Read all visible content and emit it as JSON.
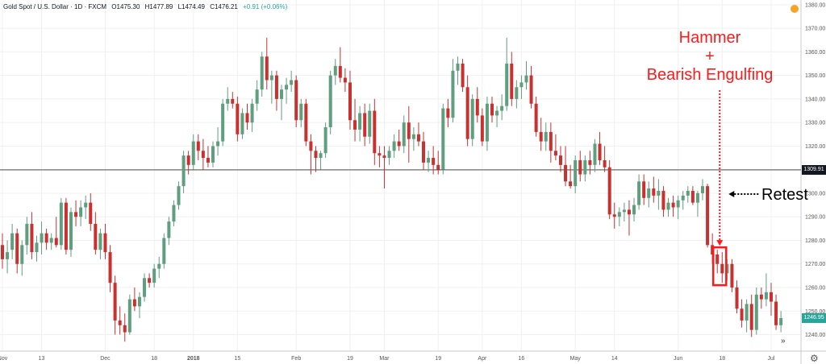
{
  "header": {
    "symbol": "Gold Spot / U.S. Dollar · 1D · FXCM",
    "open": "O1475.30",
    "high": "H1477.89",
    "low": "L1474.49",
    "close": "C1476.21",
    "change": "+0.91 (+0.06%)"
  },
  "annotations": {
    "hammer_line1": "Hammer",
    "hammer_line2": "+",
    "hammer_line3": "Bearish Engulfing",
    "retest": "Retest"
  },
  "price_labels": {
    "level": "1309.91",
    "last": "1246.95"
  },
  "colors": {
    "up": "#5f9e7e",
    "down": "#c8312f",
    "annotation": "#ff1a1a",
    "grid": "#eef0f3",
    "level_line": "#333333",
    "last_price": "#26a69a"
  },
  "icons": {
    "alert": "alert-icon",
    "settings": "gear-icon",
    "scroll": "scroll-right-icon"
  },
  "chart_data": {
    "type": "candlestick",
    "title": "",
    "xlabel": "",
    "ylabel": "",
    "ylim": [
      1233,
      1382
    ],
    "grid": true,
    "y_ticks": [
      1240,
      1250,
      1260,
      1270,
      1280,
      1290,
      1300,
      1310,
      1320,
      1330,
      1340,
      1350,
      1360,
      1370,
      1380
    ],
    "x_tick_labels": [
      {
        "label": "Nov",
        "index": 0
      },
      {
        "label": "13",
        "index": 8
      },
      {
        "label": "Dec",
        "index": 21
      },
      {
        "label": "18",
        "index": 31
      },
      {
        "label": "2018",
        "index": 39
      },
      {
        "label": "15",
        "index": 48
      },
      {
        "label": "Feb",
        "index": 60
      },
      {
        "label": "19",
        "index": 71
      },
      {
        "label": "Mar",
        "index": 78
      },
      {
        "label": "19",
        "index": 89
      },
      {
        "label": "Apr",
        "index": 98
      },
      {
        "label": "16",
        "index": 106
      },
      {
        "label": "May",
        "index": 117
      },
      {
        "label": "14",
        "index": 125
      },
      {
        "label": "Jun",
        "index": 138
      },
      {
        "label": "18",
        "index": 147
      },
      {
        "label": "Jul",
        "index": 157
      }
    ],
    "horizontal_line": 1309.91,
    "last_price": 1246.95,
    "highlight": {
      "start_index": 146,
      "end_index": 147
    },
    "candles": [
      {
        "o": 1278,
        "h": 1283,
        "l": 1268,
        "c": 1272
      },
      {
        "o": 1272,
        "h": 1280,
        "l": 1266,
        "c": 1275
      },
      {
        "o": 1276,
        "h": 1287,
        "l": 1272,
        "c": 1283
      },
      {
        "o": 1283,
        "h": 1285,
        "l": 1266,
        "c": 1270
      },
      {
        "o": 1270,
        "h": 1280,
        "l": 1265,
        "c": 1278
      },
      {
        "o": 1278,
        "h": 1290,
        "l": 1274,
        "c": 1287
      },
      {
        "o": 1287,
        "h": 1292,
        "l": 1272,
        "c": 1275
      },
      {
        "o": 1275,
        "h": 1282,
        "l": 1271,
        "c": 1279
      },
      {
        "o": 1279,
        "h": 1288,
        "l": 1274,
        "c": 1283
      },
      {
        "o": 1283,
        "h": 1285,
        "l": 1276,
        "c": 1279
      },
      {
        "o": 1279,
        "h": 1283,
        "l": 1276,
        "c": 1281
      },
      {
        "o": 1281,
        "h": 1290,
        "l": 1277,
        "c": 1278
      },
      {
        "o": 1278,
        "h": 1298,
        "l": 1276,
        "c": 1296
      },
      {
        "o": 1296,
        "h": 1298,
        "l": 1274,
        "c": 1276
      },
      {
        "o": 1276,
        "h": 1294,
        "l": 1273,
        "c": 1292
      },
      {
        "o": 1292,
        "h": 1297,
        "l": 1286,
        "c": 1290
      },
      {
        "o": 1290,
        "h": 1297,
        "l": 1286,
        "c": 1294
      },
      {
        "o": 1294,
        "h": 1299,
        "l": 1289,
        "c": 1296
      },
      {
        "o": 1296,
        "h": 1300,
        "l": 1284,
        "c": 1287
      },
      {
        "o": 1287,
        "h": 1292,
        "l": 1274,
        "c": 1276
      },
      {
        "o": 1276,
        "h": 1285,
        "l": 1272,
        "c": 1283
      },
      {
        "o": 1283,
        "h": 1287,
        "l": 1272,
        "c": 1275
      },
      {
        "o": 1275,
        "h": 1278,
        "l": 1258,
        "c": 1262
      },
      {
        "o": 1262,
        "h": 1265,
        "l": 1240,
        "c": 1246
      },
      {
        "o": 1246,
        "h": 1252,
        "l": 1240,
        "c": 1244
      },
      {
        "o": 1244,
        "h": 1249,
        "l": 1237,
        "c": 1241
      },
      {
        "o": 1241,
        "h": 1257,
        "l": 1240,
        "c": 1255
      },
      {
        "o": 1255,
        "h": 1260,
        "l": 1250,
        "c": 1252
      },
      {
        "o": 1252,
        "h": 1258,
        "l": 1247,
        "c": 1256
      },
      {
        "o": 1256,
        "h": 1266,
        "l": 1254,
        "c": 1264
      },
      {
        "o": 1264,
        "h": 1266,
        "l": 1260,
        "c": 1262
      },
      {
        "o": 1262,
        "h": 1270,
        "l": 1260,
        "c": 1268
      },
      {
        "o": 1268,
        "h": 1273,
        "l": 1264,
        "c": 1270
      },
      {
        "o": 1270,
        "h": 1283,
        "l": 1268,
        "c": 1281
      },
      {
        "o": 1281,
        "h": 1290,
        "l": 1278,
        "c": 1288
      },
      {
        "o": 1288,
        "h": 1297,
        "l": 1286,
        "c": 1295
      },
      {
        "o": 1295,
        "h": 1305,
        "l": 1293,
        "c": 1303
      },
      {
        "o": 1303,
        "h": 1318,
        "l": 1300,
        "c": 1316
      },
      {
        "o": 1316,
        "h": 1318,
        "l": 1308,
        "c": 1312
      },
      {
        "o": 1312,
        "h": 1325,
        "l": 1310,
        "c": 1322
      },
      {
        "o": 1322,
        "h": 1325,
        "l": 1314,
        "c": 1318
      },
      {
        "o": 1318,
        "h": 1323,
        "l": 1310,
        "c": 1315
      },
      {
        "o": 1315,
        "h": 1320,
        "l": 1311,
        "c": 1313
      },
      {
        "o": 1313,
        "h": 1322,
        "l": 1311,
        "c": 1320
      },
      {
        "o": 1320,
        "h": 1328,
        "l": 1316,
        "c": 1322
      },
      {
        "o": 1322,
        "h": 1340,
        "l": 1320,
        "c": 1338
      },
      {
        "o": 1338,
        "h": 1345,
        "l": 1335,
        "c": 1340
      },
      {
        "o": 1340,
        "h": 1343,
        "l": 1336,
        "c": 1338
      },
      {
        "o": 1338,
        "h": 1341,
        "l": 1322,
        "c": 1325
      },
      {
        "o": 1325,
        "h": 1336,
        "l": 1323,
        "c": 1334
      },
      {
        "o": 1334,
        "h": 1338,
        "l": 1327,
        "c": 1330
      },
      {
        "o": 1330,
        "h": 1340,
        "l": 1326,
        "c": 1338
      },
      {
        "o": 1338,
        "h": 1348,
        "l": 1335,
        "c": 1344
      },
      {
        "o": 1344,
        "h": 1360,
        "l": 1341,
        "c": 1358
      },
      {
        "o": 1358,
        "h": 1366,
        "l": 1344,
        "c": 1348
      },
      {
        "o": 1348,
        "h": 1352,
        "l": 1338,
        "c": 1350
      },
      {
        "o": 1350,
        "h": 1352,
        "l": 1335,
        "c": 1340
      },
      {
        "o": 1340,
        "h": 1346,
        "l": 1331,
        "c": 1344
      },
      {
        "o": 1344,
        "h": 1349,
        "l": 1338,
        "c": 1346
      },
      {
        "o": 1346,
        "h": 1352,
        "l": 1343,
        "c": 1348
      },
      {
        "o": 1348,
        "h": 1350,
        "l": 1328,
        "c": 1331
      },
      {
        "o": 1331,
        "h": 1340,
        "l": 1328,
        "c": 1338
      },
      {
        "o": 1338,
        "h": 1340,
        "l": 1320,
        "c": 1322
      },
      {
        "o": 1322,
        "h": 1325,
        "l": 1308,
        "c": 1318
      },
      {
        "o": 1318,
        "h": 1320,
        "l": 1309,
        "c": 1315
      },
      {
        "o": 1315,
        "h": 1318,
        "l": 1310,
        "c": 1317
      },
      {
        "o": 1317,
        "h": 1330,
        "l": 1315,
        "c": 1328
      },
      {
        "o": 1328,
        "h": 1352,
        "l": 1325,
        "c": 1350
      },
      {
        "o": 1350,
        "h": 1357,
        "l": 1346,
        "c": 1354
      },
      {
        "o": 1354,
        "h": 1362,
        "l": 1347,
        "c": 1349
      },
      {
        "o": 1349,
        "h": 1353,
        "l": 1343,
        "c": 1347
      },
      {
        "o": 1347,
        "h": 1352,
        "l": 1327,
        "c": 1331
      },
      {
        "o": 1331,
        "h": 1340,
        "l": 1322,
        "c": 1327
      },
      {
        "o": 1327,
        "h": 1337,
        "l": 1322,
        "c": 1334
      },
      {
        "o": 1334,
        "h": 1338,
        "l": 1320,
        "c": 1324
      },
      {
        "o": 1324,
        "h": 1338,
        "l": 1321,
        "c": 1335
      },
      {
        "o": 1335,
        "h": 1340,
        "l": 1312,
        "c": 1317
      },
      {
        "o": 1317,
        "h": 1320,
        "l": 1311,
        "c": 1316
      },
      {
        "o": 1316,
        "h": 1320,
        "l": 1302,
        "c": 1315
      },
      {
        "o": 1315,
        "h": 1320,
        "l": 1312,
        "c": 1318
      },
      {
        "o": 1318,
        "h": 1325,
        "l": 1315,
        "c": 1322
      },
      {
        "o": 1322,
        "h": 1327,
        "l": 1318,
        "c": 1320
      },
      {
        "o": 1320,
        "h": 1333,
        "l": 1317,
        "c": 1330
      },
      {
        "o": 1330,
        "h": 1337,
        "l": 1313,
        "c": 1323
      },
      {
        "o": 1323,
        "h": 1328,
        "l": 1318,
        "c": 1325
      },
      {
        "o": 1325,
        "h": 1330,
        "l": 1320,
        "c": 1322
      },
      {
        "o": 1322,
        "h": 1326,
        "l": 1310,
        "c": 1313
      },
      {
        "o": 1313,
        "h": 1318,
        "l": 1309,
        "c": 1315
      },
      {
        "o": 1315,
        "h": 1320,
        "l": 1308,
        "c": 1312
      },
      {
        "o": 1312,
        "h": 1318,
        "l": 1308,
        "c": 1310
      },
      {
        "o": 1310,
        "h": 1338,
        "l": 1308,
        "c": 1336
      },
      {
        "o": 1336,
        "h": 1340,
        "l": 1328,
        "c": 1332
      },
      {
        "o": 1332,
        "h": 1357,
        "l": 1330,
        "c": 1352
      },
      {
        "o": 1352,
        "h": 1358,
        "l": 1346,
        "c": 1355
      },
      {
        "o": 1355,
        "h": 1357,
        "l": 1343,
        "c": 1345
      },
      {
        "o": 1345,
        "h": 1350,
        "l": 1320,
        "c": 1323
      },
      {
        "o": 1323,
        "h": 1342,
        "l": 1320,
        "c": 1340
      },
      {
        "o": 1340,
        "h": 1345,
        "l": 1330,
        "c": 1333
      },
      {
        "o": 1333,
        "h": 1336,
        "l": 1320,
        "c": 1322
      },
      {
        "o": 1322,
        "h": 1341,
        "l": 1318,
        "c": 1338
      },
      {
        "o": 1338,
        "h": 1341,
        "l": 1330,
        "c": 1333
      },
      {
        "o": 1333,
        "h": 1337,
        "l": 1328,
        "c": 1335
      },
      {
        "o": 1335,
        "h": 1342,
        "l": 1331,
        "c": 1337
      },
      {
        "o": 1337,
        "h": 1366,
        "l": 1335,
        "c": 1355
      },
      {
        "o": 1355,
        "h": 1360,
        "l": 1337,
        "c": 1340
      },
      {
        "o": 1340,
        "h": 1348,
        "l": 1336,
        "c": 1345
      },
      {
        "o": 1345,
        "h": 1350,
        "l": 1340,
        "c": 1347
      },
      {
        "o": 1347,
        "h": 1356,
        "l": 1344,
        "c": 1350
      },
      {
        "o": 1350,
        "h": 1354,
        "l": 1336,
        "c": 1338
      },
      {
        "o": 1338,
        "h": 1341,
        "l": 1324,
        "c": 1326
      },
      {
        "o": 1326,
        "h": 1332,
        "l": 1318,
        "c": 1322
      },
      {
        "o": 1322,
        "h": 1330,
        "l": 1318,
        "c": 1326
      },
      {
        "o": 1326,
        "h": 1330,
        "l": 1313,
        "c": 1318
      },
      {
        "o": 1318,
        "h": 1325,
        "l": 1314,
        "c": 1316
      },
      {
        "o": 1316,
        "h": 1320,
        "l": 1309,
        "c": 1312
      },
      {
        "o": 1312,
        "h": 1320,
        "l": 1303,
        "c": 1305
      },
      {
        "o": 1305,
        "h": 1312,
        "l": 1302,
        "c": 1303
      },
      {
        "o": 1303,
        "h": 1316,
        "l": 1300,
        "c": 1314
      },
      {
        "o": 1314,
        "h": 1318,
        "l": 1305,
        "c": 1308
      },
      {
        "o": 1308,
        "h": 1316,
        "l": 1305,
        "c": 1314
      },
      {
        "o": 1314,
        "h": 1318,
        "l": 1308,
        "c": 1312
      },
      {
        "o": 1312,
        "h": 1323,
        "l": 1309,
        "c": 1321
      },
      {
        "o": 1321,
        "h": 1326,
        "l": 1312,
        "c": 1314
      },
      {
        "o": 1314,
        "h": 1320,
        "l": 1309,
        "c": 1311
      },
      {
        "o": 1311,
        "h": 1314,
        "l": 1289,
        "c": 1291
      },
      {
        "o": 1291,
        "h": 1296,
        "l": 1285,
        "c": 1290
      },
      {
        "o": 1290,
        "h": 1294,
        "l": 1286,
        "c": 1292
      },
      {
        "o": 1292,
        "h": 1296,
        "l": 1288,
        "c": 1293
      },
      {
        "o": 1293,
        "h": 1297,
        "l": 1282,
        "c": 1291
      },
      {
        "o": 1291,
        "h": 1298,
        "l": 1288,
        "c": 1295
      },
      {
        "o": 1295,
        "h": 1308,
        "l": 1293,
        "c": 1305
      },
      {
        "o": 1305,
        "h": 1308,
        "l": 1295,
        "c": 1298
      },
      {
        "o": 1298,
        "h": 1305,
        "l": 1294,
        "c": 1302
      },
      {
        "o": 1302,
        "h": 1307,
        "l": 1296,
        "c": 1299
      },
      {
        "o": 1299,
        "h": 1306,
        "l": 1293,
        "c": 1301
      },
      {
        "o": 1301,
        "h": 1303,
        "l": 1290,
        "c": 1293
      },
      {
        "o": 1293,
        "h": 1298,
        "l": 1290,
        "c": 1296
      },
      {
        "o": 1296,
        "h": 1299,
        "l": 1290,
        "c": 1294
      },
      {
        "o": 1294,
        "h": 1299,
        "l": 1289,
        "c": 1297
      },
      {
        "o": 1297,
        "h": 1301,
        "l": 1293,
        "c": 1299
      },
      {
        "o": 1299,
        "h": 1303,
        "l": 1296,
        "c": 1301
      },
      {
        "o": 1301,
        "h": 1303,
        "l": 1295,
        "c": 1296
      },
      {
        "o": 1296,
        "h": 1301,
        "l": 1290,
        "c": 1300
      },
      {
        "o": 1300,
        "h": 1306,
        "l": 1297,
        "c": 1303
      },
      {
        "o": 1303,
        "h": 1304,
        "l": 1277,
        "c": 1278
      },
      {
        "o": 1278,
        "h": 1283,
        "l": 1270,
        "c": 1274
      },
      {
        "o": 1274,
        "h": 1276,
        "l": 1266,
        "c": 1270
      },
      {
        "o": 1270,
        "h": 1275,
        "l": 1262,
        "c": 1266
      },
      {
        "o": 1266,
        "h": 1272,
        "l": 1263,
        "c": 1270
      },
      {
        "o": 1270,
        "h": 1272,
        "l": 1258,
        "c": 1260
      },
      {
        "o": 1260,
        "h": 1263,
        "l": 1249,
        "c": 1251
      },
      {
        "o": 1251,
        "h": 1255,
        "l": 1243,
        "c": 1246
      },
      {
        "o": 1246,
        "h": 1255,
        "l": 1241,
        "c": 1253
      },
      {
        "o": 1253,
        "h": 1257,
        "l": 1239,
        "c": 1242
      },
      {
        "o": 1242,
        "h": 1260,
        "l": 1240,
        "c": 1257
      },
      {
        "o": 1257,
        "h": 1260,
        "l": 1251,
        "c": 1255
      },
      {
        "o": 1255,
        "h": 1266,
        "l": 1252,
        "c": 1258
      },
      {
        "o": 1258,
        "h": 1262,
        "l": 1248,
        "c": 1254
      },
      {
        "o": 1254,
        "h": 1257,
        "l": 1242,
        "c": 1244
      },
      {
        "o": 1244,
        "h": 1250,
        "l": 1241,
        "c": 1247
      }
    ]
  }
}
